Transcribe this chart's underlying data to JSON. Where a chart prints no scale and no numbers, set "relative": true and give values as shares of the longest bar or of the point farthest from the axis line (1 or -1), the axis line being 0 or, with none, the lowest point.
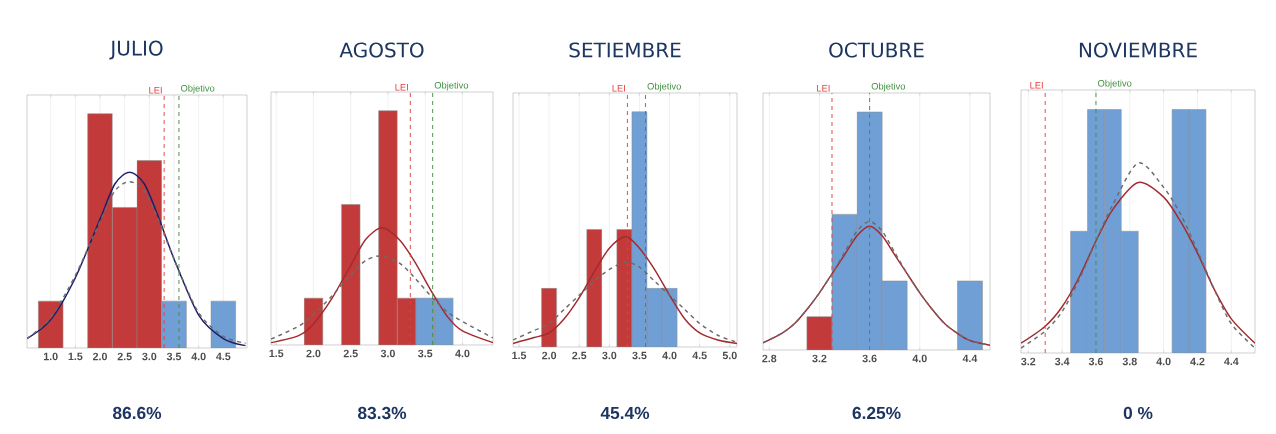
{
  "chart_data": [
    {
      "type": "histogram",
      "title": "JULIO",
      "relative": true,
      "grid": "x",
      "bins": [
        0.75,
        1.25,
        1.75,
        2.25,
        2.75,
        3.25,
        3.75,
        4.25,
        4.75
      ],
      "values": [
        0.2,
        0,
        1,
        0.6,
        0.8,
        0.2,
        0,
        0.2
      ],
      "colors": [
        "#c23b3a",
        "#c23b3a",
        "#c23b3a",
        "#c23b3a",
        "#c23b3a",
        "#709fd6",
        "#709fd6",
        "#709fd6"
      ],
      "xlim": [
        0.52,
        4.98
      ],
      "xticks": [
        {
          "value": 1,
          "label": "1.0"
        },
        1.5,
        {
          "value": 2,
          "label": "2.0"
        },
        2.5,
        {
          "value": 3,
          "label": "3.0"
        },
        3.5,
        {
          "value": 4,
          "label": "4.0"
        },
        4.5
      ],
      "series": [
        {
          "type": "line",
          "color": "#1b1f6b",
          "line_style": "solid",
          "x": [
            0.52,
            1.0,
            1.5,
            2.0,
            2.3,
            2.6,
            2.9,
            3.2,
            3.5,
            4.0,
            4.5,
            4.95
          ],
          "values": [
            0.04,
            0.12,
            0.3,
            0.55,
            0.7,
            0.75,
            0.7,
            0.55,
            0.38,
            0.14,
            0.04,
            0.01
          ]
        },
        {
          "type": "line",
          "color": "#6b6b6b",
          "line_style": "dashed",
          "x": [
            0.52,
            1.0,
            1.5,
            2.0,
            2.3,
            2.6,
            2.9,
            3.2,
            3.5,
            4.0,
            4.5,
            4.95
          ],
          "values": [
            0.04,
            0.13,
            0.31,
            0.54,
            0.67,
            0.71,
            0.67,
            0.54,
            0.38,
            0.15,
            0.05,
            0.02
          ]
        }
      ],
      "ref_lines": [
        {
          "axis": "x",
          "value": 3.3,
          "label": "LEI",
          "color": "#e0403f",
          "line_style": "dashed"
        },
        {
          "axis": "x",
          "value": 3.6,
          "label": "Objetivo",
          "color": "#3f8f3f",
          "line_style": "dashed"
        }
      ],
      "annotations": [
        "86.6%"
      ]
    },
    {
      "type": "histogram",
      "title": "AGOSTO",
      "relative": true,
      "grid": "x",
      "bins": [
        1.875,
        2.125,
        2.375,
        2.625,
        2.875,
        3.125,
        3.375,
        3.625,
        3.875
      ],
      "values": [
        0.2,
        0,
        0.6,
        0,
        1,
        0.2,
        0.2,
        0.2
      ],
      "colors": [
        "#c23b3a",
        "#c23b3a",
        "#c23b3a",
        "#c23b3a",
        "#c23b3a",
        "#c23b3a",
        "#709fd6",
        "#709fd6"
      ],
      "xlim": [
        1.43,
        4.41
      ],
      "xticks": [
        1.5,
        {
          "value": 2,
          "label": "2.0"
        },
        2.5,
        {
          "value": 3,
          "label": "3.0"
        },
        3.5,
        {
          "value": 4,
          "label": "4.0"
        }
      ],
      "series": [
        {
          "type": "line",
          "color": "#a32a2e",
          "line_style": "solid",
          "x": [
            1.43,
            1.8,
            2.0,
            2.25,
            2.5,
            2.7,
            2.92,
            3.15,
            3.35,
            3.6,
            3.8,
            4.0,
            4.41
          ],
          "values": [
            0.01,
            0.04,
            0.09,
            0.2,
            0.34,
            0.45,
            0.5,
            0.45,
            0.36,
            0.22,
            0.12,
            0.06,
            0.01
          ]
        },
        {
          "type": "line",
          "color": "#6b6b6b",
          "line_style": "dashed",
          "x": [
            1.43,
            1.8,
            2.0,
            2.25,
            2.5,
            2.7,
            2.9,
            3.15,
            3.35,
            3.6,
            3.8,
            4.0,
            4.41
          ],
          "values": [
            0.025,
            0.08,
            0.13,
            0.21,
            0.3,
            0.36,
            0.38,
            0.35,
            0.29,
            0.2,
            0.14,
            0.1,
            0.03
          ]
        }
      ],
      "ref_lines": [
        {
          "axis": "x",
          "value": 3.3,
          "label": "LEI",
          "color": "#e0403f",
          "line_style": "dashed"
        },
        {
          "axis": "x",
          "value": 3.6,
          "label": "Objetivo",
          "color": "#3f8f3f",
          "line_style": "dashed"
        }
      ],
      "annotations": [
        "83.3%"
      ]
    },
    {
      "type": "histogram",
      "title": "SETIEMBRE",
      "relative": true,
      "grid": "x",
      "bins": [
        1.875,
        2.125,
        2.375,
        2.625,
        2.875,
        3.125,
        3.375,
        3.625,
        3.875,
        4.125
      ],
      "values": [
        0.25,
        0,
        0,
        0.5,
        0,
        0.5,
        1,
        0.25,
        0.25
      ],
      "colors": [
        "#c23b3a",
        "#c23b3a",
        "#c23b3a",
        "#c23b3a",
        "#c23b3a",
        "#c23b3a",
        "#709fd6",
        "#709fd6",
        "#709fd6"
      ],
      "xlim": [
        1.4,
        5.12
      ],
      "xticks": [
        1.5,
        {
          "value": 2,
          "label": "2.0"
        },
        2.5,
        {
          "value": 3,
          "label": "3.0"
        },
        3.5,
        {
          "value": 4,
          "label": "4.0"
        },
        4.5,
        {
          "value": 5,
          "label": "5.0"
        }
      ],
      "series": [
        {
          "type": "line",
          "color": "#a32a2e",
          "line_style": "solid",
          "x": [
            1.4,
            1.75,
            2.0,
            2.25,
            2.5,
            2.75,
            3.0,
            3.27,
            3.5,
            3.75,
            4.0,
            4.25,
            4.5,
            4.8,
            5.12
          ],
          "values": [
            0.015,
            0.04,
            0.06,
            0.12,
            0.21,
            0.32,
            0.42,
            0.47,
            0.42,
            0.33,
            0.22,
            0.12,
            0.06,
            0.03,
            0.015
          ]
        },
        {
          "type": "line",
          "color": "#6b6b6b",
          "line_style": "dashed",
          "x": [
            1.4,
            1.75,
            2.0,
            2.25,
            2.5,
            2.75,
            3.0,
            3.27,
            3.5,
            3.75,
            4.0,
            4.25,
            4.5,
            4.8,
            5.12
          ],
          "values": [
            0.03,
            0.07,
            0.1,
            0.16,
            0.22,
            0.28,
            0.33,
            0.36,
            0.34,
            0.28,
            0.22,
            0.16,
            0.1,
            0.05,
            0.02
          ]
        }
      ],
      "ref_lines": [
        {
          "axis": "x",
          "value": 3.3,
          "label": "LEI",
          "color": "#e0403f",
          "line_style": "dashed"
        },
        {
          "axis": "x",
          "value": 3.6,
          "label": "Objetivo",
          "color": "#3f8f3f",
          "line_style": "dashed"
        }
      ],
      "annotations": [
        "45.4%"
      ]
    },
    {
      "type": "histogram",
      "title": "OCTUBRE",
      "relative": true,
      "grid": "x",
      "bins": [
        3.1,
        3.3,
        3.5,
        3.7,
        3.9,
        4.1,
        4.3,
        4.5
      ],
      "values": [
        0.14,
        0.57,
        1,
        0.29,
        0,
        0,
        0.29
      ],
      "colors": [
        "#c23b3a",
        "#709fd6",
        "#709fd6",
        "#709fd6",
        "#709fd6",
        "#709fd6",
        "#709fd6"
      ],
      "xlim": [
        2.75,
        4.56
      ],
      "xticks": [
        2.8,
        3.2,
        3.6,
        {
          "value": 4,
          "label": "4.0"
        },
        4.4
      ],
      "series": [
        {
          "type": "line",
          "color": "#a32a2e",
          "line_style": "solid",
          "x": [
            2.75,
            2.9,
            3.0,
            3.1,
            3.2,
            3.3,
            3.4,
            3.5,
            3.6,
            3.7,
            3.8,
            3.9,
            4.0,
            4.1,
            4.2,
            4.3,
            4.4,
            4.56
          ],
          "values": [
            0.03,
            0.07,
            0.11,
            0.17,
            0.24,
            0.32,
            0.4,
            0.48,
            0.52,
            0.48,
            0.4,
            0.32,
            0.24,
            0.17,
            0.11,
            0.07,
            0.04,
            0.02
          ]
        },
        {
          "type": "line",
          "color": "#6b6b6b",
          "line_style": "dashed",
          "x": [
            2.75,
            2.9,
            3.0,
            3.1,
            3.2,
            3.3,
            3.4,
            3.5,
            3.6,
            3.7,
            3.8,
            3.9,
            4.0,
            4.1,
            4.2,
            4.3,
            4.4,
            4.56
          ],
          "values": [
            0.03,
            0.07,
            0.11,
            0.17,
            0.24,
            0.32,
            0.41,
            0.5,
            0.54,
            0.5,
            0.41,
            0.32,
            0.24,
            0.17,
            0.11,
            0.07,
            0.04,
            0.02
          ]
        }
      ],
      "ref_lines": [
        {
          "axis": "x",
          "value": 3.3,
          "label": "LEI",
          "color": "#e0403f",
          "line_style": "dashed"
        },
        {
          "axis": "x",
          "value": 3.6,
          "label": "Objetivo",
          "color": "#3f8f3f",
          "line_style": "dashed"
        }
      ],
      "annotations": [
        "6.25%"
      ]
    },
    {
      "type": "histogram",
      "title": "NOVIEMBRE",
      "relative": true,
      "grid": "x",
      "bins": [
        3.45,
        3.55,
        3.65,
        3.75,
        3.85,
        3.95,
        4.05,
        4.15,
        4.25
      ],
      "values": [
        0.5,
        1,
        1,
        0.5,
        0,
        0,
        1,
        1
      ],
      "colors": [
        "#709fd6",
        "#709fd6",
        "#709fd6",
        "#709fd6",
        "#709fd6",
        "#709fd6",
        "#709fd6",
        "#709fd6"
      ],
      "xlim": [
        3.157,
        4.54
      ],
      "xticks": [
        3.2,
        3.4,
        3.6,
        3.8,
        {
          "value": 4,
          "label": "4.0"
        },
        4.2,
        4.4
      ],
      "series": [
        {
          "type": "line",
          "color": "#a32a2e",
          "line_style": "solid",
          "x": [
            3.157,
            3.3,
            3.4,
            3.5,
            3.6,
            3.7,
            3.85,
            4.0,
            4.1,
            4.2,
            4.3,
            4.4,
            4.54
          ],
          "values": [
            0.04,
            0.11,
            0.19,
            0.31,
            0.46,
            0.59,
            0.7,
            0.64,
            0.54,
            0.41,
            0.26,
            0.14,
            0.04
          ]
        },
        {
          "type": "line",
          "color": "#6b6b6b",
          "line_style": "dashed",
          "x": [
            3.157,
            3.3,
            3.4,
            3.5,
            3.6,
            3.7,
            3.85,
            4.0,
            4.1,
            4.2,
            4.3,
            4.4,
            4.54
          ],
          "values": [
            0.02,
            0.09,
            0.17,
            0.3,
            0.46,
            0.61,
            0.78,
            0.68,
            0.57,
            0.42,
            0.26,
            0.12,
            0.02
          ]
        }
      ],
      "ref_lines": [
        {
          "axis": "x",
          "value": 3.3,
          "label": "LEI",
          "color": "#e0403f",
          "line_style": "dashed"
        },
        {
          "axis": "x",
          "value": 3.6,
          "label": "Objetivo",
          "color": "#3f8f3f",
          "line_style": "dashed"
        }
      ],
      "annotations": [
        "0 %"
      ]
    }
  ]
}
